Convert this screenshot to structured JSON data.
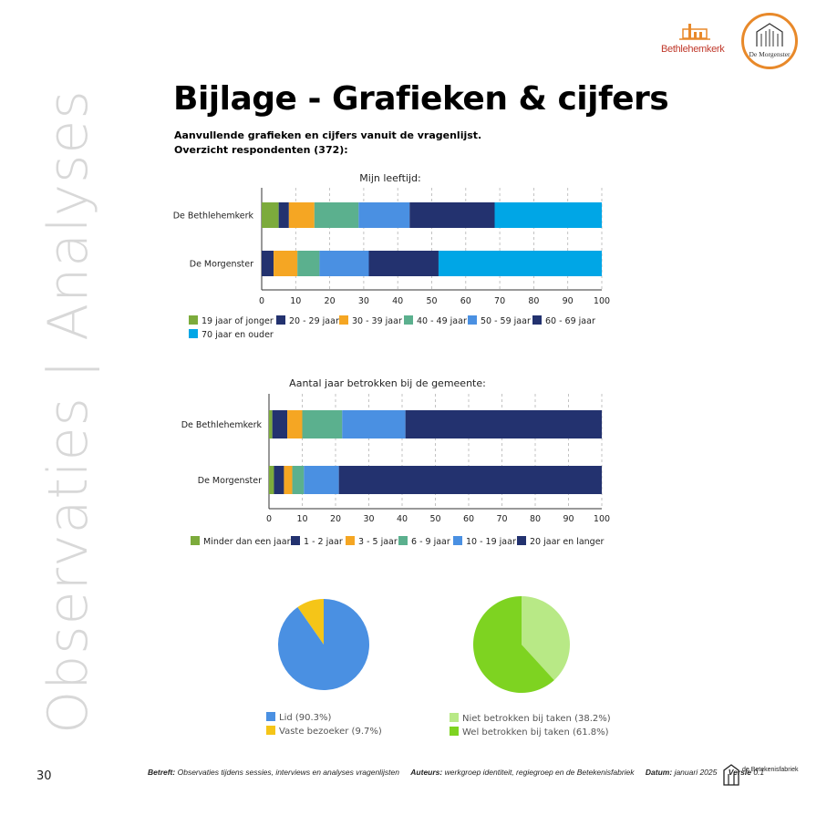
{
  "side_title": "Observaties | Analyses",
  "logos": {
    "bethlehemkerk": "Bethlehemkerk",
    "morgenster": "De Morgenster",
    "betekenisfabriek": "de Betekenisfabriek"
  },
  "page_title": "Bijlage - Grafieken & cijfers",
  "subtitle_1": "Aanvullende grafieken en cijfers vanuit de vragenlijst.",
  "subtitle_2": "Overzicht respondenten (372):",
  "chart_data": [
    {
      "type": "bar",
      "orientation": "horizontal-stacked",
      "title": "Mijn leeftijd:",
      "categories": [
        "De Bethlehemkerk",
        "De Morgenster"
      ],
      "xlim": [
        0,
        100
      ],
      "xticks": [
        0,
        10,
        20,
        30,
        40,
        50,
        60,
        70,
        80,
        90,
        100
      ],
      "grid": "vertical dashed",
      "legend": "bottom",
      "series": [
        {
          "name": "19 jaar of jonger",
          "color": "#7cab3c",
          "values": [
            5,
            0
          ]
        },
        {
          "name": "20 - 29 jaar",
          "color": "#23326f",
          "values": [
            3,
            3.5
          ]
        },
        {
          "name": "30 - 39 jaar",
          "color": "#f5a623",
          "values": [
            7.5,
            7
          ]
        },
        {
          "name": "40 - 49 jaar",
          "color": "#5bb08e",
          "values": [
            13,
            6.5
          ]
        },
        {
          "name": "50 - 59 jaar",
          "color": "#4a90e2",
          "values": [
            15,
            14.5
          ]
        },
        {
          "name": "60 - 69 jaar",
          "color": "#23326f",
          "values": [
            25,
            20.5
          ]
        },
        {
          "name": "70 jaar en ouder",
          "color": "#00a6e6",
          "values": [
            31.5,
            48
          ]
        }
      ]
    },
    {
      "type": "bar",
      "orientation": "horizontal-stacked",
      "title": "Aantal jaar betrokken bij de gemeente:",
      "categories": [
        "De Bethlehemkerk",
        "De Morgenster"
      ],
      "xlim": [
        0,
        100
      ],
      "xticks": [
        0,
        10,
        20,
        30,
        40,
        50,
        60,
        70,
        80,
        90,
        100
      ],
      "grid": "vertical dashed",
      "legend": "bottom",
      "series": [
        {
          "name": "Minder dan een jaar",
          "color": "#7cab3c",
          "values": [
            1,
            1.5
          ]
        },
        {
          "name": "1 - 2 jaar",
          "color": "#23326f",
          "values": [
            4.5,
            3
          ]
        },
        {
          "name": "3 - 5 jaar",
          "color": "#f5a623",
          "values": [
            4.5,
            2.5
          ]
        },
        {
          "name": "6 - 9 jaar",
          "color": "#5bb08e",
          "values": [
            12,
            3.5
          ]
        },
        {
          "name": "10 - 19 jaar",
          "color": "#4a90e2",
          "values": [
            19,
            10.5
          ]
        },
        {
          "name": "20 jaar en langer",
          "color": "#23326f",
          "values": [
            59,
            79
          ]
        }
      ]
    },
    {
      "type": "pie",
      "legend": "bottom",
      "slices": [
        {
          "label": "Lid (90.3%)",
          "value": 90.3,
          "color": "#4a90e2"
        },
        {
          "label": "Vaste bezoeker (9.7%)",
          "value": 9.7,
          "color": "#f5c518"
        }
      ]
    },
    {
      "type": "pie",
      "legend": "bottom",
      "slices": [
        {
          "label": "Niet betrokken bij taken (38.2%)",
          "value": 38.2,
          "color": "#b8e986"
        },
        {
          "label": "Wel betrokken bij taken (61.8%)",
          "value": 61.8,
          "color": "#7ed321"
        }
      ]
    }
  ],
  "page_number": "30",
  "footer": {
    "betreft_label": "Betreft:",
    "betreft_value": "Observaties tijdens sessies, interviews en analyses vragenlijsten",
    "auteurs_label": "Auteurs:",
    "auteurs_value": "werkgroep identiteit, regiegroep en de Betekenisfabriek",
    "datum_label": "Datum:",
    "datum_value": "januari 2025",
    "versie_label": "Versie",
    "versie_value": "0.1"
  }
}
